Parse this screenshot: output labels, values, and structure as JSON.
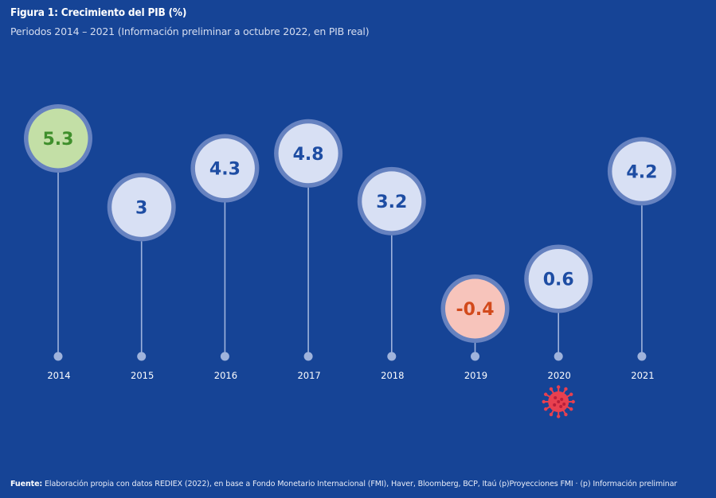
{
  "header": {
    "title": "Figura 1: Crecimiento del PIB (%)",
    "subtitle": "Periodos 2014 – 2021 (Información preliminar a octubre 2022, en PIB real)"
  },
  "footer": {
    "label": "Fuente:",
    "text": " Elaboración propia con datos REDIEX (2022), en base a Fondo Monetario Internacional (FMI), Haver, Bloomberg, BCP, Itaú (p)Proyecciones FMI · (p) Información preliminar"
  },
  "chart_data": {
    "type": "scatter",
    "style": "lollipop-bubbles",
    "title": "Figura 1: Crecimiento del PIB (%)",
    "subtitle": "Periodos 2014 – 2021 (Información preliminar a octubre 2022, en PIB real)",
    "xlabel": "",
    "ylabel": "Crecimiento del PIB (%)",
    "categories": [
      "2014",
      "2015",
      "2016",
      "2017",
      "2018",
      "2019",
      "2020",
      "2021"
    ],
    "values": [
      5.3,
      3,
      4.3,
      4.8,
      3.2,
      -0.4,
      0.6,
      4.2
    ],
    "labels": [
      "5.3",
      "3",
      "4.3",
      "4.8",
      "3.2",
      "-0.4",
      "0.6",
      "4.2"
    ],
    "highlight": {
      "max": {
        "category": "2014",
        "fill": "#c3dfa6",
        "text": "#3f8f2c"
      },
      "min": {
        "category": "2019",
        "fill": "#f7c4bb",
        "text": "#d24a1c"
      },
      "default": {
        "fill": "#d8e0f4",
        "text": "#1e4da3"
      }
    },
    "annotations": [
      {
        "category": "2020",
        "icon": "virus-icon",
        "meaning": "COVID-19",
        "color": "#e8404f"
      }
    ],
    "grid": false,
    "legend": "none"
  },
  "colors": {
    "background": "#164496",
    "ring": "#6a86c2",
    "stem": "#9fb3dc"
  }
}
